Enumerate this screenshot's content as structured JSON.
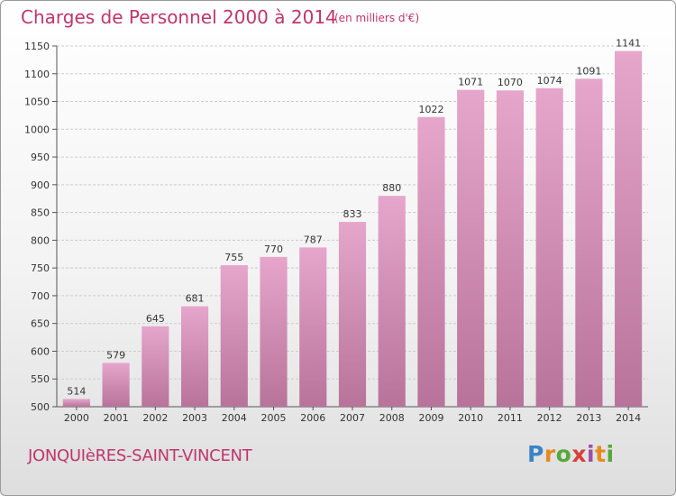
{
  "title": "Charges de Personnel 2000 à 2014",
  "unit_note": "(en milliers d'€)",
  "commune": "JONQUIèRES-SAINT-VINCENT",
  "logo": {
    "text": "Proxiti",
    "letters": [
      "P",
      "r",
      "o",
      "x",
      "i",
      "t",
      "i"
    ]
  },
  "colors": {
    "accent": "#c0356c",
    "bar_top": "#e6a6cc",
    "bar_bottom": "#b8739a",
    "grid": "#cccccc"
  },
  "chart_data": {
    "type": "bar",
    "title": "Charges de Personnel 2000 à 2014",
    "xlabel": "",
    "ylabel": "",
    "categories": [
      "2000",
      "2001",
      "2002",
      "2003",
      "2004",
      "2005",
      "2006",
      "2007",
      "2008",
      "2009",
      "2010",
      "2011",
      "2012",
      "2013",
      "2014"
    ],
    "values": [
      514,
      579,
      645,
      681,
      755,
      770,
      787,
      833,
      880,
      1022,
      1071,
      1070,
      1074,
      1091,
      1141
    ],
    "ylim": [
      500,
      1150
    ],
    "yticks": [
      500,
      550,
      600,
      650,
      700,
      750,
      800,
      850,
      900,
      950,
      1000,
      1050,
      1100,
      1150
    ],
    "grid": true,
    "data_labels": true
  }
}
